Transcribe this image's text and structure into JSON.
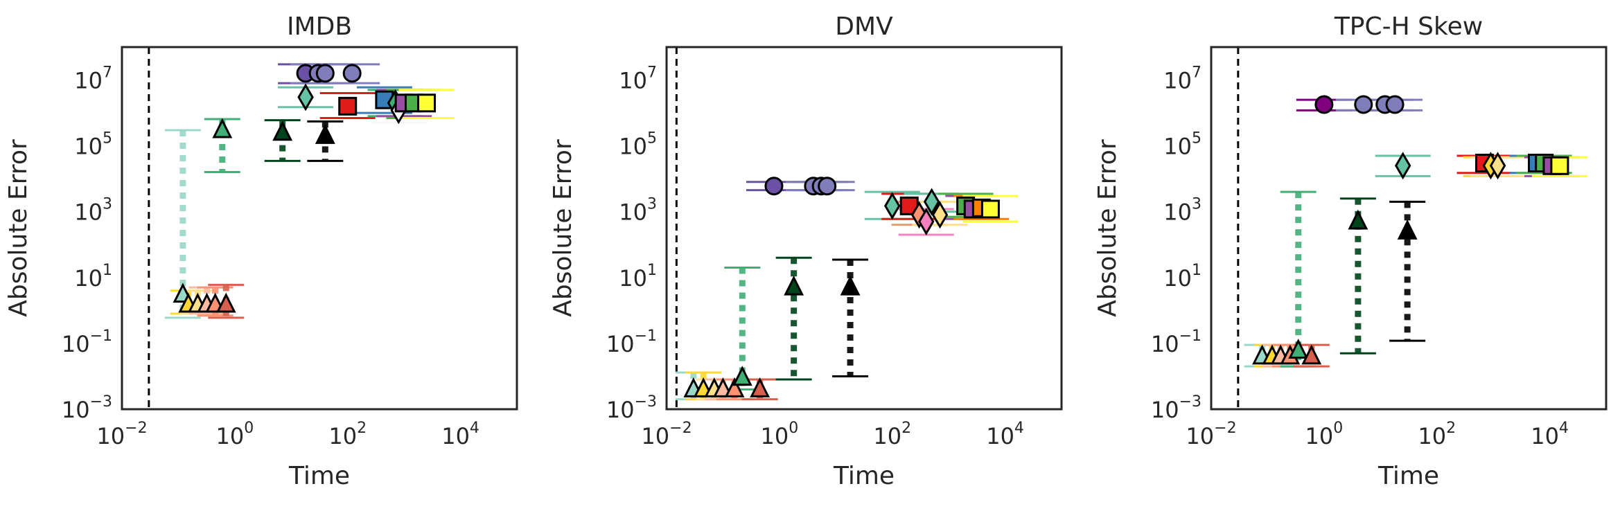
{
  "chart_data": [
    {
      "type": "scatter",
      "title": "IMDB",
      "xlabel": "Time",
      "ylabel": "Absolute Error",
      "xscale": "log",
      "yscale": "log",
      "xlim": [
        0.01,
        100000
      ],
      "ylim": [
        0.001,
        100000000
      ],
      "x_ticks": [
        "10^-2",
        "10^0",
        "10^2",
        "10^4"
      ],
      "y_ticks": [
        "10^-3",
        "10^-1",
        "10^1",
        "10^3",
        "10^5",
        "10^7"
      ],
      "grid": false,
      "vline_x": 0.03,
      "points": [
        {
          "x": 0.12,
          "y": 3,
          "lo": 0.6,
          "hi": 300000,
          "marker": "triangle",
          "color": "#99d8c9"
        },
        {
          "x": 0.15,
          "y": 1.5,
          "lo": 0.8,
          "hi": 4,
          "marker": "triangle",
          "color": "#fdd835"
        },
        {
          "x": 0.22,
          "y": 1.5,
          "lo": 0.8,
          "hi": 4,
          "marker": "triangle",
          "color": "#fee08b"
        },
        {
          "x": 0.32,
          "y": 1.5,
          "lo": 0.8,
          "hi": 5,
          "marker": "triangle",
          "color": "#fcbba1"
        },
        {
          "x": 0.45,
          "y": 1.5,
          "lo": 0.7,
          "hi": 5,
          "marker": "triangle",
          "color": "#fc9272"
        },
        {
          "x": 0.7,
          "y": 1.5,
          "lo": 0.6,
          "hi": 6,
          "marker": "triangle",
          "color": "#d6604d"
        },
        {
          "x": 0.6,
          "y": 300000,
          "lo": 16000,
          "hi": 650000,
          "marker": "triangle",
          "color": "#41ae76"
        },
        {
          "x": 7,
          "y": 250000,
          "lo": 35000,
          "hi": 600000,
          "marker": "triangle",
          "color": "#00441b"
        },
        {
          "x": 40,
          "y": 200000,
          "lo": 35000,
          "hi": 550000,
          "marker": "triangle",
          "color": "#000000"
        },
        {
          "x": 18,
          "y": 3000000,
          "lo": 1500000,
          "hi": 6000000,
          "marker": "diamond",
          "color": "#66c2a4"
        },
        {
          "x": 18,
          "y": 16000000,
          "lo": 8000000,
          "hi": 30000000,
          "marker": "circle",
          "color": "#6a51a3"
        },
        {
          "x": 30,
          "y": 16000000,
          "lo": 8000000,
          "hi": 30000000,
          "marker": "circle",
          "color": "#807dba"
        },
        {
          "x": 40,
          "y": 16000000,
          "lo": 8000000,
          "hi": 30000000,
          "marker": "circle",
          "color": "#807dba"
        },
        {
          "x": 120,
          "y": 16000000,
          "lo": 8000000,
          "hi": 30000000,
          "marker": "circle",
          "color": "#807dba"
        },
        {
          "x": 100,
          "y": 1600000,
          "lo": 700000,
          "hi": 4000000,
          "marker": "square",
          "color": "#e31a1c"
        },
        {
          "x": 450,
          "y": 2500000,
          "lo": 1000000,
          "hi": 6000000,
          "marker": "square",
          "color": "#377eb8"
        },
        {
          "x": 700,
          "y": 2000000,
          "lo": 800000,
          "hi": 5000000,
          "marker": "diamond",
          "color": "#41ae76"
        },
        {
          "x": 800,
          "y": 1200000,
          "lo": 500000,
          "hi": 3000000,
          "marker": "diamond",
          "color": "#f7f7f7"
        },
        {
          "x": 1000,
          "y": 2000000,
          "lo": 800000,
          "hi": 5000000,
          "marker": "square",
          "color": "#984ea3"
        },
        {
          "x": 1500,
          "y": 2000000,
          "lo": 700000,
          "hi": 5000000,
          "marker": "square",
          "color": "#4daf4a"
        },
        {
          "x": 2500,
          "y": 2000000,
          "lo": 700000,
          "hi": 5000000,
          "marker": "square",
          "color": "#ffff33"
        }
      ]
    },
    {
      "type": "scatter",
      "title": "DMV",
      "xlabel": "Time",
      "ylabel": "Absolute Error",
      "xscale": "log",
      "yscale": "log",
      "xlim": [
        0.01,
        100000
      ],
      "ylim": [
        0.001,
        100000000
      ],
      "x_ticks": [
        "10^-2",
        "10^0",
        "10^2",
        "10^4"
      ],
      "y_ticks": [
        "10^-3",
        "10^-1",
        "10^1",
        "10^3",
        "10^5",
        "10^7"
      ],
      "grid": false,
      "vline_x": 0.015,
      "points": [
        {
          "x": 0.03,
          "y": 0.004,
          "lo": 0.002,
          "hi": 0.013,
          "marker": "triangle",
          "color": "#99d8c9"
        },
        {
          "x": 0.045,
          "y": 0.004,
          "lo": 0.002,
          "hi": 0.013,
          "marker": "triangle",
          "color": "#fdd835"
        },
        {
          "x": 0.07,
          "y": 0.004,
          "lo": 0.002,
          "hi": 0.008,
          "marker": "triangle",
          "color": "#fee08b"
        },
        {
          "x": 0.1,
          "y": 0.004,
          "lo": 0.002,
          "hi": 0.008,
          "marker": "triangle",
          "color": "#fcbba1"
        },
        {
          "x": 0.16,
          "y": 0.004,
          "lo": 0.002,
          "hi": 0.008,
          "marker": "triangle",
          "color": "#fc9272"
        },
        {
          "x": 0.22,
          "y": 0.009,
          "lo": 0.004,
          "hi": 20,
          "marker": "triangle",
          "color": "#41ae76"
        },
        {
          "x": 0.45,
          "y": 0.004,
          "lo": 0.002,
          "hi": 0.008,
          "marker": "triangle",
          "color": "#d6604d"
        },
        {
          "x": 1.8,
          "y": 5,
          "lo": 0.008,
          "hi": 40,
          "marker": "triangle",
          "color": "#00441b"
        },
        {
          "x": 18,
          "y": 5,
          "lo": 0.01,
          "hi": 35,
          "marker": "triangle",
          "color": "#000000"
        },
        {
          "x": 0.8,
          "y": 6000,
          "lo": 4500,
          "hi": 8000,
          "marker": "circle",
          "color": "#6a51a3"
        },
        {
          "x": 4,
          "y": 6000,
          "lo": 4500,
          "hi": 8000,
          "marker": "circle",
          "color": "#807dba"
        },
        {
          "x": 5.5,
          "y": 6000,
          "lo": 4500,
          "hi": 8000,
          "marker": "circle",
          "color": "#807dba"
        },
        {
          "x": 7,
          "y": 6000,
          "lo": 4500,
          "hi": 8000,
          "marker": "circle",
          "color": "#807dba"
        },
        {
          "x": 100,
          "y": 1500,
          "lo": 600,
          "hi": 4000,
          "marker": "diamond",
          "color": "#66c2a4"
        },
        {
          "x": 200,
          "y": 1500,
          "lo": 600,
          "hi": 3500,
          "marker": "square",
          "color": "#e31a1c"
        },
        {
          "x": 300,
          "y": 800,
          "lo": 400,
          "hi": 2000,
          "marker": "diamond",
          "color": "#fc9272"
        },
        {
          "x": 400,
          "y": 500,
          "lo": 200,
          "hi": 1200,
          "marker": "diamond",
          "color": "#f781bf"
        },
        {
          "x": 500,
          "y": 2000,
          "lo": 1000,
          "hi": 3500,
          "marker": "diamond",
          "color": "#66c2a4"
        },
        {
          "x": 700,
          "y": 800,
          "lo": 400,
          "hi": 2000,
          "marker": "diamond",
          "color": "#fee08b"
        },
        {
          "x": 2000,
          "y": 1500,
          "lo": 700,
          "hi": 3500,
          "marker": "square",
          "color": "#4daf4a"
        },
        {
          "x": 2700,
          "y": 1200,
          "lo": 600,
          "hi": 3000,
          "marker": "square",
          "color": "#984ea3"
        },
        {
          "x": 3800,
          "y": 1300,
          "lo": 600,
          "hi": 3000,
          "marker": "square",
          "color": "#ff7f00"
        },
        {
          "x": 5500,
          "y": 1200,
          "lo": 500,
          "hi": 3000,
          "marker": "square",
          "color": "#ffff33"
        }
      ]
    },
    {
      "type": "scatter",
      "title": "TPC-H Skew",
      "xlabel": "Time",
      "ylabel": "Absolute Error",
      "xscale": "log",
      "yscale": "log",
      "xlim": [
        0.01,
        100000
      ],
      "ylim": [
        0.001,
        100000000
      ],
      "x_ticks": [
        "10^-2",
        "10^0",
        "10^2",
        "10^4"
      ],
      "y_ticks": [
        "10^-3",
        "10^-1",
        "10^1",
        "10^3",
        "10^5",
        "10^7"
      ],
      "grid": false,
      "vline_x": 0.03,
      "points": [
        {
          "x": 0.08,
          "y": 0.04,
          "lo": 0.02,
          "hi": 0.09,
          "marker": "triangle",
          "color": "#99d8c9"
        },
        {
          "x": 0.12,
          "y": 0.04,
          "lo": 0.02,
          "hi": 0.09,
          "marker": "triangle",
          "color": "#fdd835"
        },
        {
          "x": 0.17,
          "y": 0.04,
          "lo": 0.02,
          "hi": 0.09,
          "marker": "triangle",
          "color": "#fcbba1"
        },
        {
          "x": 0.25,
          "y": 0.04,
          "lo": 0.02,
          "hi": 0.09,
          "marker": "triangle",
          "color": "#fc9272"
        },
        {
          "x": 0.35,
          "y": 0.06,
          "lo": 0.02,
          "hi": 4000,
          "marker": "triangle",
          "color": "#41ae76"
        },
        {
          "x": 0.6,
          "y": 0.04,
          "lo": 0.02,
          "hi": 0.09,
          "marker": "triangle",
          "color": "#d6604d"
        },
        {
          "x": 4,
          "y": 500,
          "lo": 0.05,
          "hi": 2500,
          "marker": "triangle",
          "color": "#00441b"
        },
        {
          "x": 30,
          "y": 250,
          "lo": 0.12,
          "hi": 2000,
          "marker": "triangle",
          "color": "#000000"
        },
        {
          "x": 1,
          "y": 1800000,
          "lo": 1200000,
          "hi": 2500000,
          "marker": "circle",
          "color": "#800080"
        },
        {
          "x": 5,
          "y": 1800000,
          "lo": 1200000,
          "hi": 2500000,
          "marker": "circle",
          "color": "#807dba"
        },
        {
          "x": 12,
          "y": 1800000,
          "lo": 1200000,
          "hi": 2500000,
          "marker": "circle",
          "color": "#807dba"
        },
        {
          "x": 18,
          "y": 1800000,
          "lo": 1200000,
          "hi": 2500000,
          "marker": "circle",
          "color": "#807dba"
        },
        {
          "x": 25,
          "y": 25000,
          "lo": 12000,
          "hi": 50000,
          "marker": "diamond",
          "color": "#66c2a4"
        },
        {
          "x": 700,
          "y": 30000,
          "lo": 15000,
          "hi": 50000,
          "marker": "square",
          "color": "#e31a1c"
        },
        {
          "x": 900,
          "y": 25000,
          "lo": 12000,
          "hi": 45000,
          "marker": "diamond",
          "color": "#fdd835"
        },
        {
          "x": 1200,
          "y": 25000,
          "lo": 12000,
          "hi": 45000,
          "marker": "diamond",
          "color": "#fee08b"
        },
        {
          "x": 6000,
          "y": 30000,
          "lo": 15000,
          "hi": 50000,
          "marker": "square",
          "color": "#377eb8"
        },
        {
          "x": 8000,
          "y": 30000,
          "lo": 15000,
          "hi": 50000,
          "marker": "square",
          "color": "#4daf4a"
        },
        {
          "x": 11000,
          "y": 25000,
          "lo": 12000,
          "hi": 45000,
          "marker": "square",
          "color": "#984ea3"
        },
        {
          "x": 15000,
          "y": 25000,
          "lo": 12000,
          "hi": 45000,
          "marker": "square",
          "color": "#ffff33"
        }
      ]
    }
  ]
}
